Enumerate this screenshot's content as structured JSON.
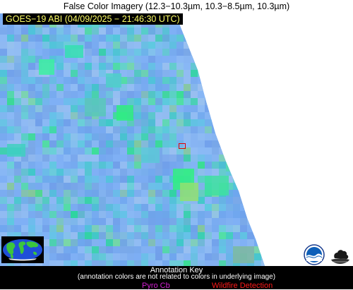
{
  "header": {
    "title": "False Color Imagery (12.3−10.3µm, 10.3−8.5µm, 10.3µm)",
    "stamp": "GOES−19 ABI (04/09/2025 − 21:46:30 UTC)"
  },
  "colors": {
    "stamp_text": "#ffff66",
    "stamp_bg": "#000000",
    "sky_base": "#7fb0f5",
    "off_disk": "#ffffff",
    "pyro_cb": "#d020d0",
    "wildfire": "#ff1a1a",
    "roi_box": "#e00000"
  },
  "logos": [
    "globe-thumbnail",
    "noaa-logo",
    "cimss-logo"
  ],
  "legend": {
    "title": "Annotation Key",
    "note": "(annotation colors are not related to colors in underlying image)",
    "pyro_cb": "Pyro Cb",
    "wildfire": "Wildfire Detection"
  }
}
